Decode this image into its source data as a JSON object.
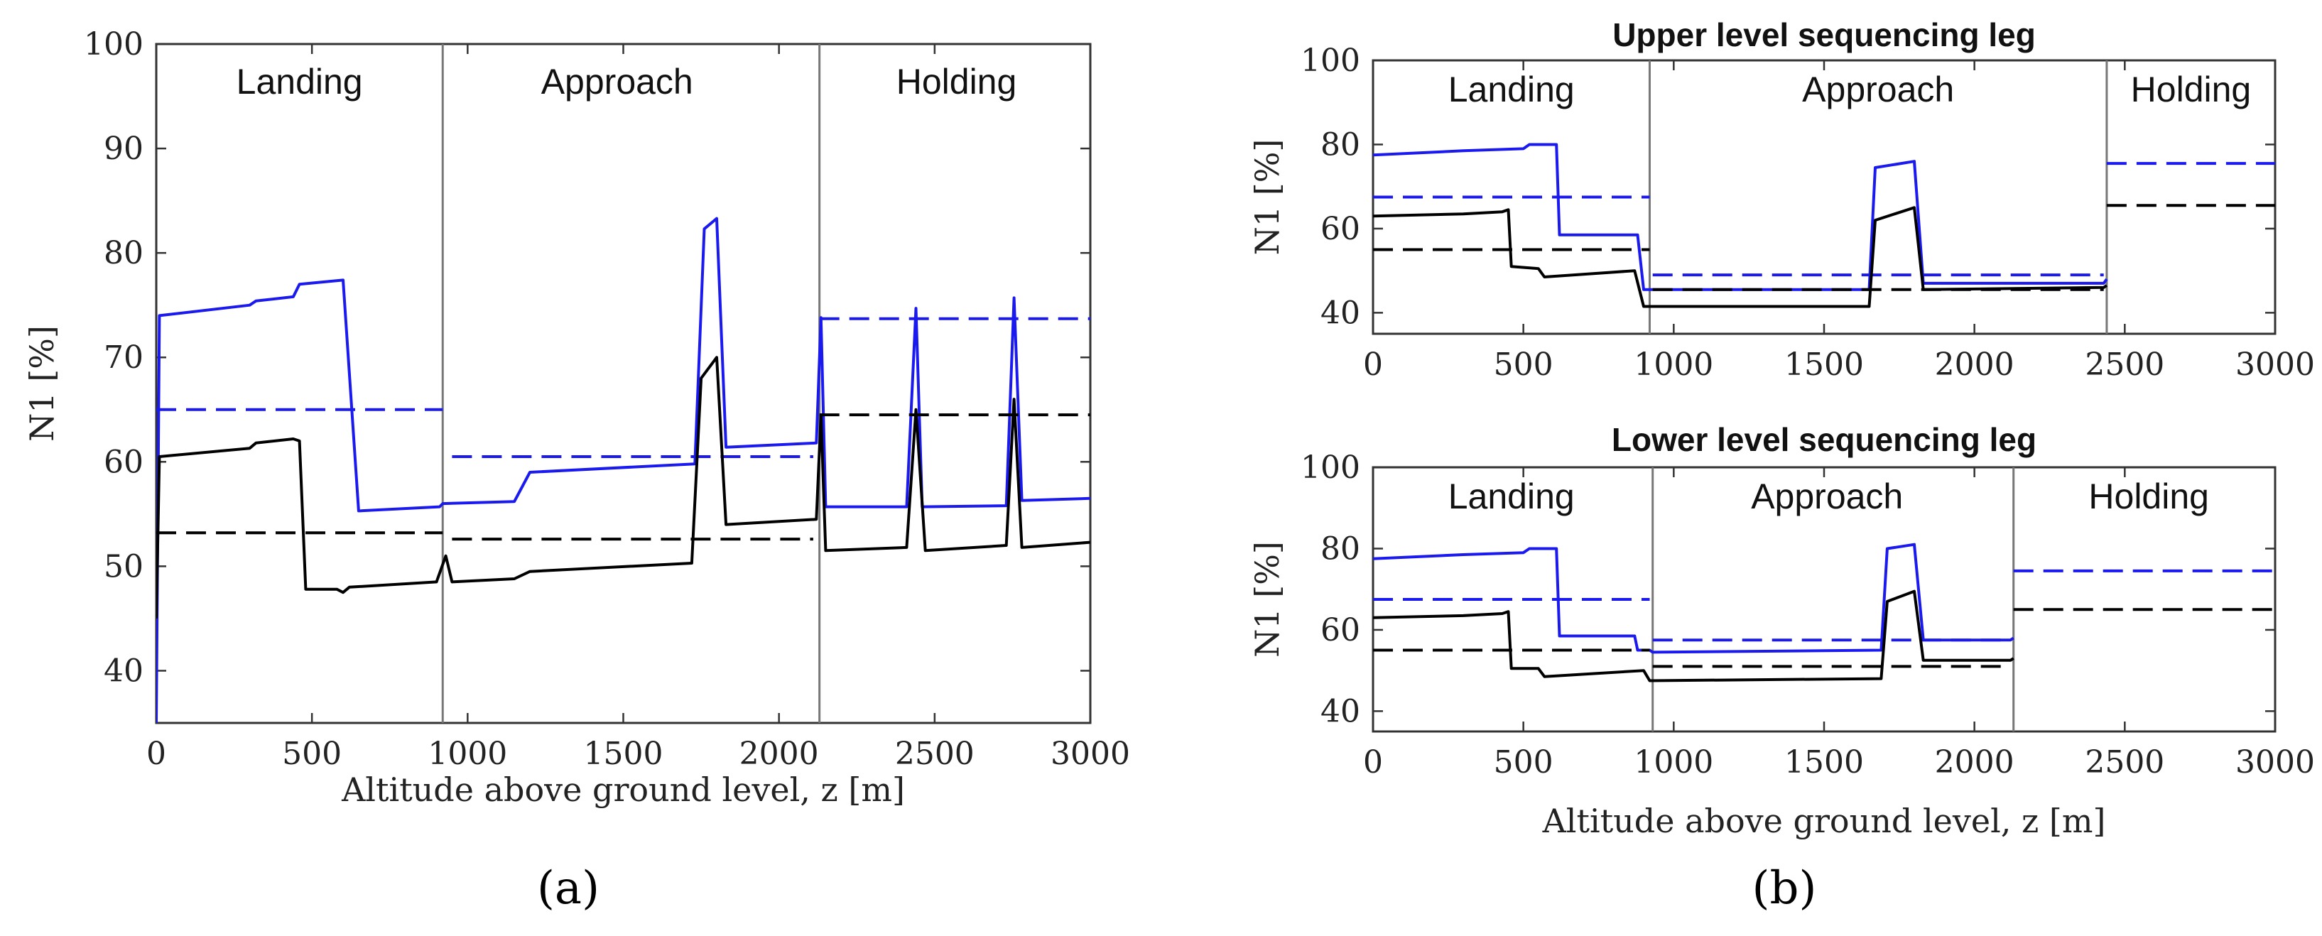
{
  "chart_data": [
    {
      "id": "a",
      "type": "line",
      "panel_label": "(a)",
      "title": "",
      "xlabel": "Altitude above ground level, z [m]",
      "ylabel": "N1 [%]",
      "xlim": [
        0,
        3000
      ],
      "ylim": [
        35,
        100
      ],
      "xticks": [
        0,
        500,
        1000,
        1500,
        2000,
        2500,
        3000
      ],
      "yticks": [
        40,
        50,
        60,
        70,
        80,
        90,
        100
      ],
      "phase_boundaries": [
        920,
        2130
      ],
      "phases": [
        {
          "label": "Landing",
          "x": 460,
          "y": 96.5
        },
        {
          "label": "Approach",
          "x": 1480,
          "y": 96.5
        },
        {
          "label": "Holding",
          "x": 2570,
          "y": 96.5
        }
      ],
      "series": [
        {
          "name": "blue-solid",
          "color": "#1a1aee",
          "dash": false,
          "points": [
            [
              0,
              35
            ],
            [
              10,
              74
            ],
            [
              300,
              75
            ],
            [
              320,
              75.4
            ],
            [
              440,
              75.8
            ],
            [
              460,
              77
            ],
            [
              600,
              77.4
            ],
            [
              650,
              55.3
            ],
            [
              910,
              55.7
            ],
            [
              920,
              56
            ],
            [
              1150,
              56.2
            ],
            [
              1200,
              59
            ],
            [
              1730,
              59.8
            ],
            [
              1760,
              82.3
            ],
            [
              1800,
              83.3
            ],
            [
              1830,
              61.4
            ],
            [
              2120,
              61.8
            ],
            [
              2135,
              73.8
            ],
            [
              2150,
              55.7
            ],
            [
              2410,
              55.7
            ],
            [
              2440,
              74.7
            ],
            [
              2460,
              55.7
            ],
            [
              2730,
              55.8
            ],
            [
              2755,
              75.7
            ],
            [
              2780,
              56.3
            ],
            [
              3000,
              56.5
            ]
          ]
        },
        {
          "name": "blue-dashed",
          "color": "#1a1aee",
          "dash": true,
          "points": [
            [
              0,
              65
            ],
            [
              920,
              65
            ],
            [
              null,
              null
            ],
            [
              950,
              60.5
            ],
            [
              2110,
              60.5
            ],
            [
              null,
              null
            ],
            [
              2130,
              73.7
            ],
            [
              3000,
              73.7
            ]
          ]
        },
        {
          "name": "black-solid",
          "color": "#000000",
          "dash": false,
          "points": [
            [
              0,
              45
            ],
            [
              10,
              60.5
            ],
            [
              300,
              61.3
            ],
            [
              320,
              61.8
            ],
            [
              440,
              62.2
            ],
            [
              460,
              62
            ],
            [
              480,
              47.8
            ],
            [
              580,
              47.8
            ],
            [
              600,
              47.5
            ],
            [
              620,
              48
            ],
            [
              900,
              48.5
            ],
            [
              930,
              51
            ],
            [
              950,
              48.5
            ],
            [
              1150,
              48.8
            ],
            [
              1200,
              49.5
            ],
            [
              1720,
              50.3
            ],
            [
              1750,
              68
            ],
            [
              1800,
              70
            ],
            [
              1830,
              54
            ],
            [
              2120,
              54.5
            ],
            [
              2135,
              64.5
            ],
            [
              2150,
              51.5
            ],
            [
              2410,
              51.8
            ],
            [
              2440,
              65
            ],
            [
              2470,
              51.5
            ],
            [
              2730,
              52
            ],
            [
              2755,
              66
            ],
            [
              2780,
              51.8
            ],
            [
              3000,
              52.3
            ]
          ]
        },
        {
          "name": "black-dashed",
          "color": "#000000",
          "dash": true,
          "points": [
            [
              0,
              53.2
            ],
            [
              920,
              53.2
            ],
            [
              null,
              null
            ],
            [
              950,
              52.6
            ],
            [
              2110,
              52.6
            ],
            [
              null,
              null
            ],
            [
              2130,
              64.5
            ],
            [
              3000,
              64.5
            ]
          ]
        }
      ]
    },
    {
      "id": "b-upper",
      "type": "line",
      "panel_label": "(b)",
      "title": "Upper level sequencing leg",
      "xlabel": "",
      "ylabel": "N1 [%]",
      "xlim": [
        0,
        3000
      ],
      "ylim": [
        35,
        100
      ],
      "xticks": [
        0,
        500,
        1000,
        1500,
        2000,
        2500,
        3000
      ],
      "yticks": [
        40,
        60,
        80,
        100
      ],
      "phase_boundaries": [
        920,
        2440
      ],
      "phases": [
        {
          "label": "Landing",
          "x": 460,
          "y": 91
        },
        {
          "label": "Approach",
          "x": 1680,
          "y": 91
        },
        {
          "label": "Holding",
          "x": 2720,
          "y": 91
        }
      ],
      "series": [
        {
          "name": "blue-solid",
          "color": "#1a1aee",
          "dash": false,
          "points": [
            [
              0,
              77.5
            ],
            [
              300,
              78.5
            ],
            [
              500,
              79
            ],
            [
              520,
              80
            ],
            [
              610,
              80
            ],
            [
              620,
              58.5
            ],
            [
              880,
              58.5
            ],
            [
              900,
              45.5
            ],
            [
              1650,
              45.5
            ],
            [
              1670,
              74.5
            ],
            [
              1800,
              76
            ],
            [
              1830,
              47
            ],
            [
              2430,
              47
            ],
            [
              2440,
              48
            ]
          ]
        },
        {
          "name": "blue-dashed",
          "color": "#1a1aee",
          "dash": true,
          "points": [
            [
              0,
              67.5
            ],
            [
              920,
              67.5
            ],
            [
              null,
              null
            ],
            [
              930,
              49
            ],
            [
              2430,
              49
            ],
            [
              null,
              null
            ],
            [
              2440,
              75.5
            ],
            [
              3000,
              75.5
            ]
          ]
        },
        {
          "name": "black-solid",
          "color": "#000000",
          "dash": false,
          "points": [
            [
              0,
              63
            ],
            [
              300,
              63.5
            ],
            [
              430,
              64
            ],
            [
              450,
              64.5
            ],
            [
              460,
              51
            ],
            [
              550,
              50.5
            ],
            [
              570,
              48.5
            ],
            [
              870,
              50
            ],
            [
              900,
              41.5
            ],
            [
              1650,
              41.5
            ],
            [
              1670,
              62
            ],
            [
              1800,
              65
            ],
            [
              1830,
              45.5
            ],
            [
              2430,
              46
            ],
            [
              2440,
              46.5
            ]
          ]
        },
        {
          "name": "black-dashed",
          "color": "#000000",
          "dash": true,
          "points": [
            [
              0,
              55
            ],
            [
              920,
              55
            ],
            [
              null,
              null
            ],
            [
              930,
              45.5
            ],
            [
              2430,
              45.5
            ],
            [
              null,
              null
            ],
            [
              2440,
              65.5
            ],
            [
              3000,
              65.5
            ]
          ]
        }
      ]
    },
    {
      "id": "b-lower",
      "type": "line",
      "panel_label": "",
      "title": "Lower level sequencing leg",
      "xlabel": "Altitude above ground level, z [m]",
      "ylabel": "N1 [%]",
      "xlim": [
        0,
        3000
      ],
      "ylim": [
        35,
        100
      ],
      "xticks": [
        0,
        500,
        1000,
        1500,
        2000,
        2500,
        3000
      ],
      "yticks": [
        40,
        60,
        80,
        100
      ],
      "phase_boundaries": [
        930,
        2130
      ],
      "phases": [
        {
          "label": "Landing",
          "x": 460,
          "y": 91
        },
        {
          "label": "Approach",
          "x": 1510,
          "y": 91
        },
        {
          "label": "Holding",
          "x": 2580,
          "y": 91
        }
      ],
      "series": [
        {
          "name": "blue-solid",
          "color": "#1a1aee",
          "dash": false,
          "points": [
            [
              0,
              77.5
            ],
            [
              300,
              78.5
            ],
            [
              500,
              79
            ],
            [
              520,
              80
            ],
            [
              610,
              80
            ],
            [
              620,
              58.5
            ],
            [
              870,
              58.5
            ],
            [
              880,
              55
            ],
            [
              920,
              55
            ],
            [
              930,
              54.5
            ],
            [
              1690,
              55
            ],
            [
              1710,
              80
            ],
            [
              1800,
              81
            ],
            [
              1830,
              57.5
            ],
            [
              2120,
              57.5
            ],
            [
              2130,
              58
            ]
          ]
        },
        {
          "name": "blue-dashed",
          "color": "#1a1aee",
          "dash": true,
          "points": [
            [
              0,
              67.5
            ],
            [
              920,
              67.5
            ],
            [
              null,
              null
            ],
            [
              930,
              57.5
            ],
            [
              2120,
              57.5
            ],
            [
              null,
              null
            ],
            [
              2130,
              74.5
            ],
            [
              3000,
              74.5
            ]
          ]
        },
        {
          "name": "black-solid",
          "color": "#000000",
          "dash": false,
          "points": [
            [
              0,
              63
            ],
            [
              300,
              63.5
            ],
            [
              430,
              64
            ],
            [
              450,
              64.5
            ],
            [
              460,
              50.5
            ],
            [
              550,
              50.5
            ],
            [
              570,
              48.5
            ],
            [
              900,
              50
            ],
            [
              920,
              47.5
            ],
            [
              1690,
              48
            ],
            [
              1710,
              67
            ],
            [
              1800,
              69.5
            ],
            [
              1830,
              52.5
            ],
            [
              2120,
              52.5
            ],
            [
              2130,
              53
            ]
          ]
        },
        {
          "name": "black-dashed",
          "color": "#000000",
          "dash": true,
          "points": [
            [
              0,
              55
            ],
            [
              920,
              55
            ],
            [
              null,
              null
            ],
            [
              930,
              51
            ],
            [
              2120,
              51
            ],
            [
              null,
              null
            ],
            [
              2130,
              65
            ],
            [
              3000,
              65
            ]
          ]
        }
      ]
    }
  ]
}
